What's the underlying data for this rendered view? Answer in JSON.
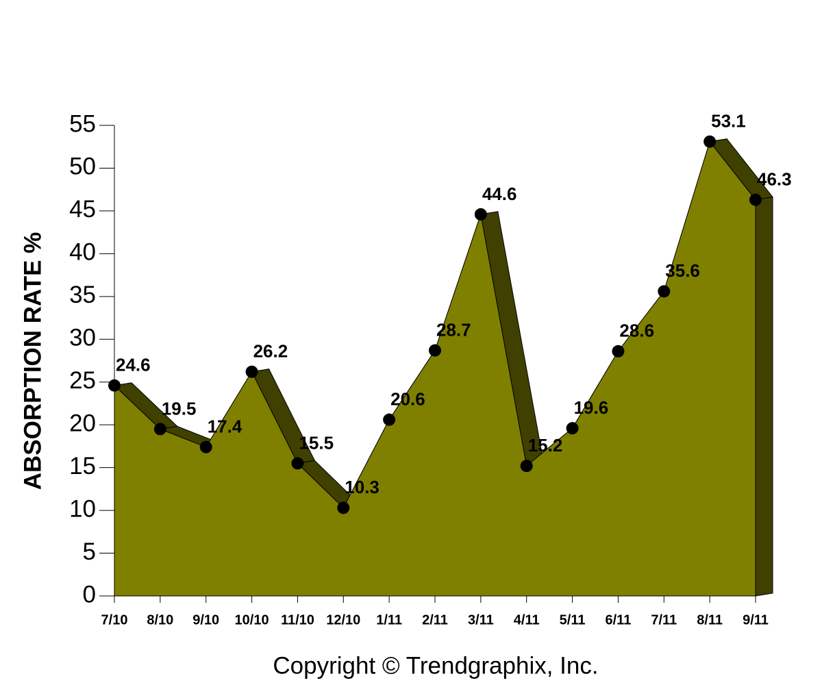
{
  "chart_data": {
    "type": "area",
    "ylabel": "ABSORPTION RATE %",
    "caption": "Copyright © Trendgraphix, Inc.",
    "categories": [
      "7/10",
      "8/10",
      "9/10",
      "10/10",
      "11/10",
      "12/10",
      "1/11",
      "2/11",
      "3/11",
      "4/11",
      "5/11",
      "6/11",
      "7/11",
      "8/11",
      "9/11"
    ],
    "values": [
      24.6,
      19.5,
      17.4,
      26.2,
      15.5,
      10.3,
      20.6,
      28.7,
      44.6,
      15.2,
      19.6,
      28.6,
      35.6,
      53.1,
      46.3
    ],
    "color": "#808000",
    "side_color": "#404000",
    "marker_color": "#000000",
    "ylim": [
      0,
      55
    ],
    "yticks": [
      0,
      5,
      10,
      15,
      20,
      25,
      30,
      35,
      40,
      45,
      50,
      55
    ]
  }
}
